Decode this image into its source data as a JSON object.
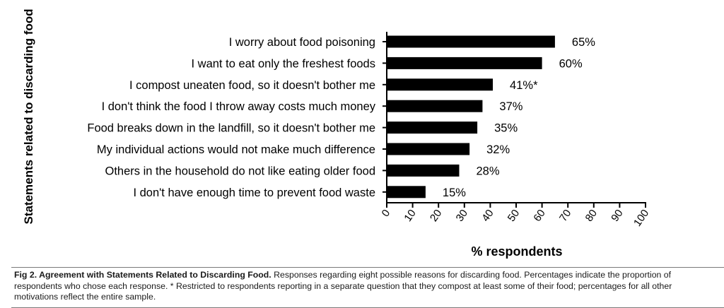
{
  "chart_data": {
    "type": "bar",
    "orientation": "horizontal",
    "categories": [
      "I worry about food poisoning",
      "I want to eat only the freshest foods",
      "I compost uneaten food, so it doesn't bother me",
      "I don't think the food I throw away costs much money",
      "Food breaks down in the landfill, so it doesn't bother me",
      "My individual actions would not make much difference",
      "Others in the household do not like eating older food",
      "I don't have enough time to prevent food waste"
    ],
    "values": [
      65,
      60,
      41,
      37,
      35,
      32,
      28,
      15
    ],
    "data_labels": [
      "65%",
      "60%",
      "41%*",
      "37%",
      "35%",
      "32%",
      "28%",
      "15%"
    ],
    "xlabel": "% respondents",
    "ylabel": "Statements related to discarding food",
    "xlim": [
      0,
      100
    ],
    "xticks": [
      "0",
      "10",
      "20",
      "30",
      "40",
      "50",
      "60",
      "70",
      "80",
      "90",
      "100"
    ],
    "bar_color": "#000000",
    "grid": false
  },
  "caption": {
    "lead": "Fig 2. Agreement with Statements Related to Discarding Food.",
    "body": " Responses regarding eight possible reasons for discarding food. Percentages indicate the proportion of respondents who chose each response. * Restricted to respondents reporting in a separate question that they compost at least some of their food; percentages for all other motivations reflect the entire sample."
  }
}
